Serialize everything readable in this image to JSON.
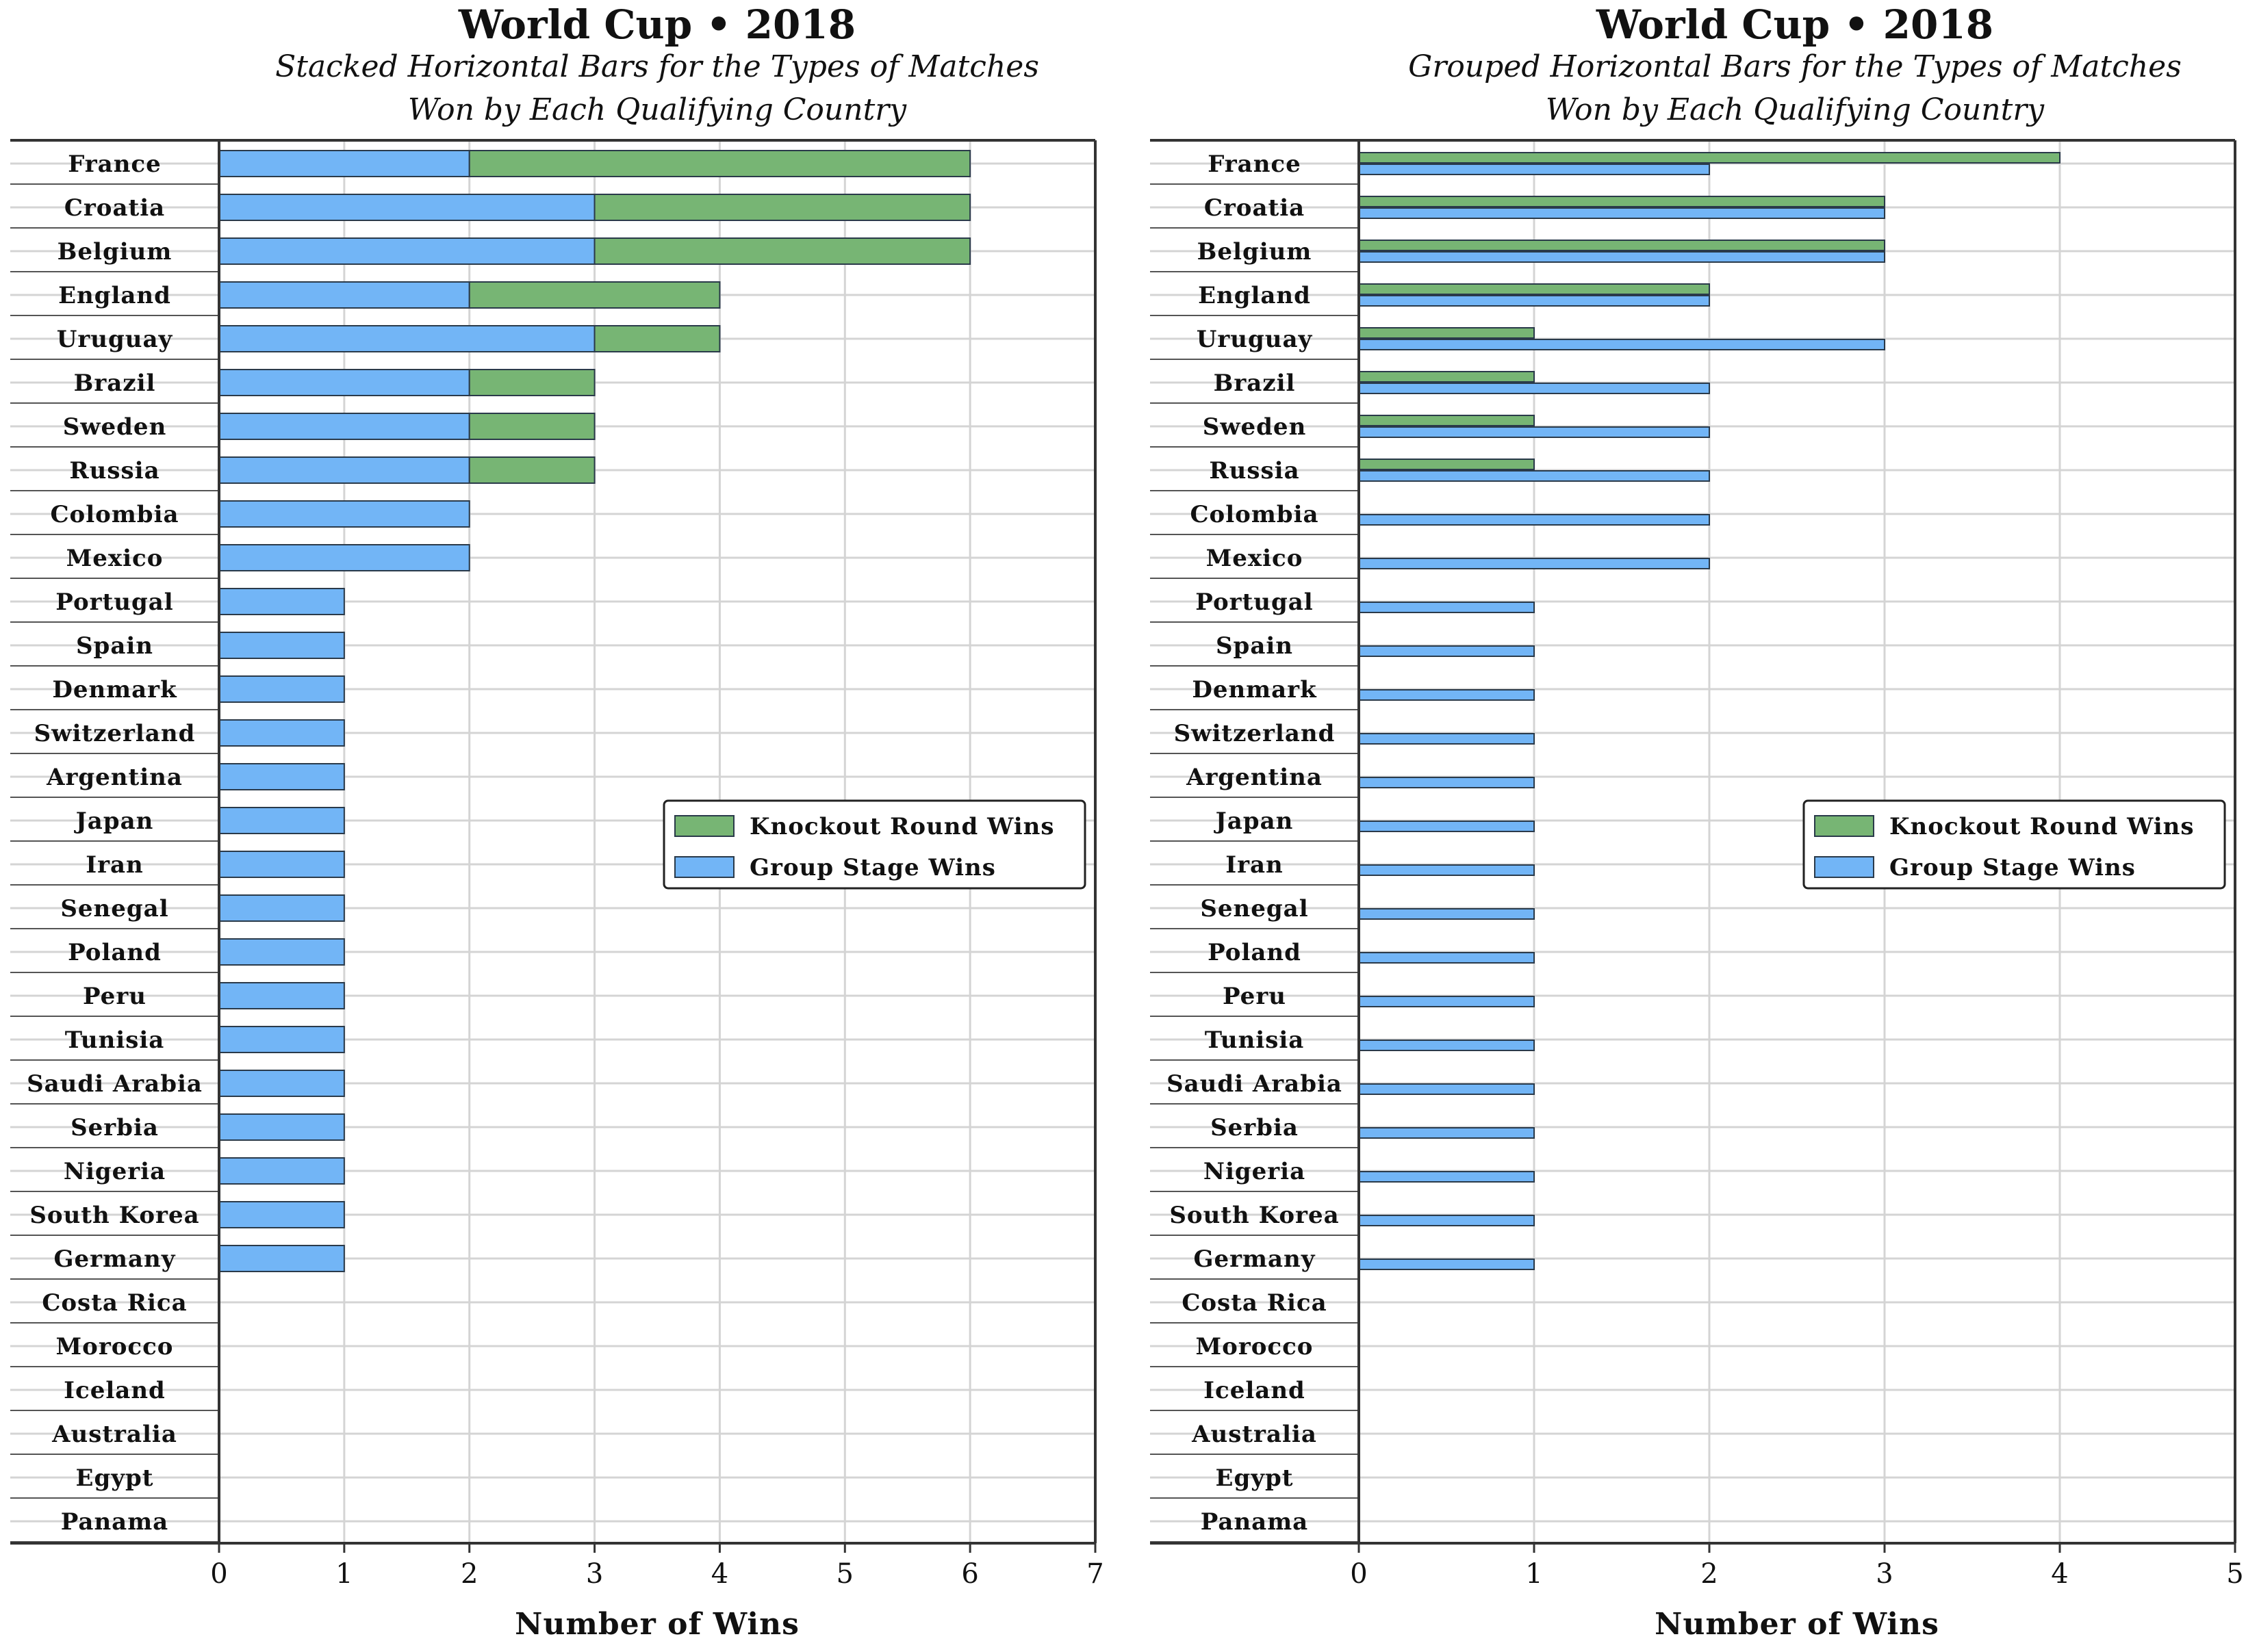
{
  "colors": {
    "knockout": "#77b574",
    "group": "#72b5f6",
    "bar_edge": "#2a3a4a",
    "grid": "#d4d4d4",
    "axis": "#333333"
  },
  "chart_data": [
    {
      "type": "bar",
      "orientation": "horizontal",
      "mode": "stacked",
      "title": "World Cup • 2018",
      "subtitle_lines": [
        "Stacked Horizontal Bars for the Types of Matches",
        "Won by Each Qualifying Country"
      ],
      "xlabel": "Number of Wins",
      "xlim": [
        0,
        7
      ],
      "xticks": [
        "0",
        "1",
        "2",
        "3",
        "4",
        "5",
        "6",
        "7"
      ],
      "grid": true,
      "legend_position": "center-right",
      "legend": [
        "Knockout Round Wins",
        "Group Stage Wins"
      ],
      "categories": [
        "France",
        "Croatia",
        "Belgium",
        "England",
        "Uruguay",
        "Brazil",
        "Sweden",
        "Russia",
        "Colombia",
        "Mexico",
        "Portugal",
        "Spain",
        "Denmark",
        "Switzerland",
        "Argentina",
        "Japan",
        "Iran",
        "Senegal",
        "Poland",
        "Peru",
        "Tunisia",
        "Saudi Arabia",
        "Serbia",
        "Nigeria",
        "South Korea",
        "Germany",
        "Costa Rica",
        "Morocco",
        "Iceland",
        "Australia",
        "Egypt",
        "Panama"
      ],
      "series": [
        {
          "name": "Group Stage Wins",
          "values": [
            2,
            3,
            3,
            2,
            3,
            2,
            2,
            2,
            2,
            2,
            1,
            1,
            1,
            1,
            1,
            1,
            1,
            1,
            1,
            1,
            1,
            1,
            1,
            1,
            1,
            1,
            0,
            0,
            0,
            0,
            0,
            0
          ]
        },
        {
          "name": "Knockout Round Wins",
          "values": [
            4,
            3,
            3,
            2,
            1,
            1,
            1,
            1,
            0,
            0,
            0,
            0,
            0,
            0,
            0,
            0,
            0,
            0,
            0,
            0,
            0,
            0,
            0,
            0,
            0,
            0,
            0,
            0,
            0,
            0,
            0,
            0
          ]
        }
      ]
    },
    {
      "type": "bar",
      "orientation": "horizontal",
      "mode": "grouped",
      "title": "World Cup • 2018",
      "subtitle_lines": [
        "Grouped Horizontal Bars for the Types of Matches",
        "Won by Each Qualifying Country"
      ],
      "xlabel": "Number of Wins",
      "xlim": [
        0,
        5
      ],
      "xticks": [
        "0",
        "1",
        "2",
        "3",
        "4",
        "5"
      ],
      "grid": true,
      "legend_position": "center-right",
      "legend": [
        "Knockout Round Wins",
        "Group Stage Wins"
      ],
      "categories": [
        "France",
        "Croatia",
        "Belgium",
        "England",
        "Uruguay",
        "Brazil",
        "Sweden",
        "Russia",
        "Colombia",
        "Mexico",
        "Portugal",
        "Spain",
        "Denmark",
        "Switzerland",
        "Argentina",
        "Japan",
        "Iran",
        "Senegal",
        "Poland",
        "Peru",
        "Tunisia",
        "Saudi Arabia",
        "Serbia",
        "Nigeria",
        "South Korea",
        "Germany",
        "Costa Rica",
        "Morocco",
        "Iceland",
        "Australia",
        "Egypt",
        "Panama"
      ],
      "series": [
        {
          "name": "Knockout Round Wins",
          "values": [
            4,
            3,
            3,
            2,
            1,
            1,
            1,
            1,
            0,
            0,
            0,
            0,
            0,
            0,
            0,
            0,
            0,
            0,
            0,
            0,
            0,
            0,
            0,
            0,
            0,
            0,
            0,
            0,
            0,
            0,
            0,
            0
          ]
        },
        {
          "name": "Group Stage Wins",
          "values": [
            2,
            3,
            3,
            2,
            3,
            2,
            2,
            2,
            2,
            2,
            1,
            1,
            1,
            1,
            1,
            1,
            1,
            1,
            1,
            1,
            1,
            1,
            1,
            1,
            1,
            1,
            0,
            0,
            0,
            0,
            0,
            0
          ]
        }
      ]
    }
  ]
}
